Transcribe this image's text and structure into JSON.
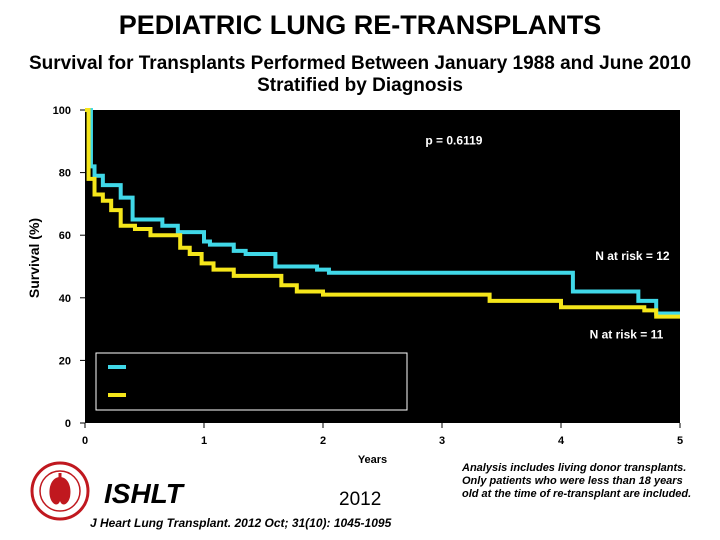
{
  "header": {
    "title": "PEDIATRIC LUNG RE-TRANSPLANTS",
    "subtitle_line1": "Survival for Transplants Performed Between January 1988 and June 2010",
    "subtitle_line2": "Stratified by Diagnosis"
  },
  "footer": {
    "logo_text": "ISHLT",
    "year": "2012",
    "citation": "J Heart Lung Transplant. 2012 Oct; 31(10): 1045-1095",
    "note": "Analysis includes living donor transplants. Only patients who were less than 18 years old at the time of re-transplant are included."
  },
  "colors": {
    "plot_background": "#000000",
    "cyan_series": "#40d8e8",
    "yellow_series": "#f5e61a"
  },
  "chart_data": {
    "type": "line",
    "title": "",
    "xlabel": "Years",
    "ylabel": "Survival (%)",
    "xlim": [
      0,
      5
    ],
    "ylim": [
      0,
      100
    ],
    "xticks": [
      "0",
      "1",
      "2",
      "3",
      "4",
      "5"
    ],
    "yticks": [
      "0",
      "20",
      "40",
      "60",
      "80",
      "100"
    ],
    "grid": false,
    "step": true,
    "annotations": [
      {
        "text": "p = 0.6119",
        "x": 3.1,
        "y": 89
      },
      {
        "text": "N at risk =  12",
        "x": 4.6,
        "y": 52
      },
      {
        "text": "N at risk =  11",
        "x": 4.55,
        "y": 27
      }
    ],
    "legend": {
      "placement": "lower-left",
      "labels": [
        "",
        ""
      ]
    },
    "series": [
      {
        "color": "#40d8e8",
        "x": [
          0,
          0.05,
          0.08,
          0.15,
          0.3,
          0.4,
          0.65,
          0.78,
          1.0,
          1.05,
          1.25,
          1.35,
          1.6,
          1.95,
          2.05,
          4.0,
          4.1,
          4.5,
          4.65,
          4.8,
          5.0
        ],
        "y": [
          100,
          82,
          79,
          76,
          72,
          65,
          63,
          61,
          58,
          57,
          55,
          54,
          50,
          49,
          48,
          48,
          42,
          42,
          39,
          35,
          35
        ]
      },
      {
        "color": "#f5e61a",
        "x": [
          0,
          0.03,
          0.08,
          0.15,
          0.22,
          0.3,
          0.42,
          0.55,
          0.8,
          0.88,
          0.98,
          1.08,
          1.25,
          1.65,
          1.78,
          2.0,
          2.85,
          3.4,
          4.0,
          4.7,
          4.8,
          5.0
        ],
        "y": [
          100,
          78,
          73,
          71,
          68,
          63,
          62,
          60,
          56,
          54,
          51,
          49,
          47,
          44,
          42,
          41,
          41,
          39,
          37,
          36,
          34,
          34
        ]
      }
    ]
  }
}
